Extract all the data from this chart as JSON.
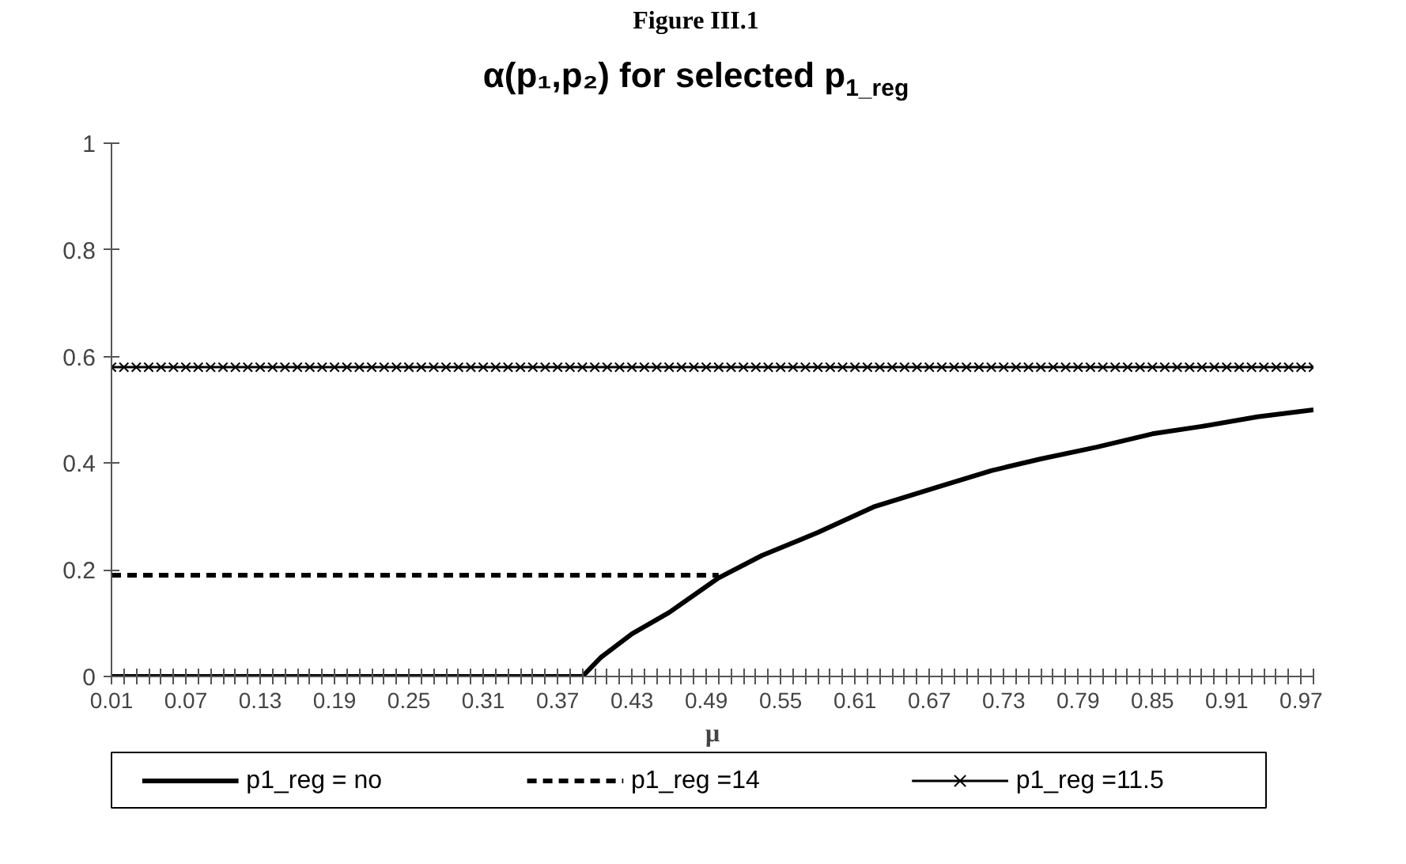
{
  "chart_data": {
    "type": "line",
    "title": "α(p₁,p₂) for selected p$_{1_reg}$",
    "annotations": [
      "Figure III.1"
    ],
    "xlabel": "μ",
    "x": [
      0.01,
      0.02,
      0.03,
      0.04,
      0.05,
      0.06,
      0.07,
      0.08,
      0.09,
      0.1,
      0.11,
      0.12,
      0.13,
      0.14,
      0.15,
      0.16,
      0.17,
      0.18,
      0.19,
      0.2,
      0.21,
      0.22,
      0.23,
      0.24,
      0.25,
      0.26,
      0.27,
      0.28,
      0.29,
      0.3,
      0.31,
      0.32,
      0.33,
      0.34,
      0.35,
      0.36,
      0.37,
      0.38,
      0.39,
      0.4,
      0.41,
      0.42,
      0.43,
      0.44,
      0.45,
      0.46,
      0.47,
      0.48,
      0.49,
      0.5,
      0.51,
      0.52,
      0.53,
      0.54,
      0.55,
      0.56,
      0.57,
      0.58,
      0.59,
      0.6,
      0.61,
      0.62,
      0.63,
      0.64,
      0.65,
      0.66,
      0.67,
      0.68,
      0.69,
      0.7,
      0.71,
      0.72,
      0.73,
      0.74,
      0.75,
      0.76,
      0.77,
      0.78,
      0.79,
      0.8,
      0.81,
      0.82,
      0.83,
      0.84,
      0.85,
      0.86,
      0.87,
      0.88,
      0.89,
      0.9,
      0.91,
      0.92,
      0.93,
      0.94,
      0.95,
      0.96,
      0.97,
      0.98
    ],
    "series": [
      {
        "name": "p1_reg = no",
        "color": "#000000",
        "line_style": "solid",
        "marker": "none",
        "x": [
          0.01,
          0.39,
          0.405,
          0.43,
          0.46,
          0.5,
          0.535,
          0.58,
          0.625,
          0.675,
          0.72,
          0.76,
          0.805,
          0.85,
          0.89,
          0.935,
          0.98
        ],
        "values": [
          0,
          0,
          0.036,
          0.08,
          0.12,
          0.185,
          0.227,
          0.27,
          0.318,
          0.354,
          0.386,
          0.408,
          0.43,
          0.455,
          0.469,
          0.487,
          0.5
        ]
      },
      {
        "name": "p1_reg =14",
        "color": "#000000",
        "line_style": "dashed",
        "marker": "none",
        "x": [
          0.01,
          0.5
        ],
        "values": [
          0.19,
          0.19
        ]
      },
      {
        "name": "p1_reg =11.5",
        "color": "#000000",
        "line_style": "solid",
        "marker": "cross",
        "values": [
          0.58,
          0.58,
          0.58,
          0.58,
          0.58,
          0.58,
          0.58,
          0.58,
          0.58,
          0.58,
          0.58,
          0.58,
          0.58,
          0.58,
          0.58,
          0.58,
          0.58,
          0.58,
          0.58,
          0.58,
          0.58,
          0.58,
          0.58,
          0.58,
          0.58,
          0.58,
          0.58,
          0.58,
          0.58,
          0.58,
          0.58,
          0.58,
          0.58,
          0.58,
          0.58,
          0.58,
          0.58,
          0.58,
          0.58,
          0.58,
          0.58,
          0.58,
          0.58,
          0.58,
          0.58,
          0.58,
          0.58,
          0.58,
          0.58,
          0.58,
          0.58,
          0.58,
          0.58,
          0.58,
          0.58,
          0.58,
          0.58,
          0.58,
          0.58,
          0.58,
          0.58,
          0.58,
          0.58,
          0.58,
          0.58,
          0.58,
          0.58,
          0.58,
          0.58,
          0.58,
          0.58,
          0.58,
          0.58,
          0.58,
          0.58,
          0.58,
          0.58,
          0.58,
          0.58,
          0.58,
          0.58,
          0.58,
          0.58,
          0.58,
          0.58,
          0.58,
          0.58,
          0.58,
          0.58,
          0.58,
          0.58,
          0.58,
          0.58,
          0.58,
          0.58,
          0.58,
          0.58,
          0.58
        ]
      }
    ],
    "xlim": [
      0.01,
      0.98
    ],
    "xticks": [
      0.01,
      {
        "value": 0.02,
        "label": null
      },
      {
        "value": 0.03,
        "label": null
      },
      {
        "value": 0.04,
        "label": null
      },
      {
        "value": 0.05,
        "label": null
      },
      {
        "value": 0.06,
        "label": null
      },
      0.07,
      {
        "value": 0.08,
        "label": null
      },
      {
        "value": 0.09,
        "label": null
      },
      {
        "value": 0.1,
        "label": null
      },
      {
        "value": 0.11,
        "label": null
      },
      {
        "value": 0.12,
        "label": null
      },
      0.13,
      {
        "value": 0.14,
        "label": null
      },
      {
        "value": 0.15,
        "label": null
      },
      {
        "value": 0.16,
        "label": null
      },
      {
        "value": 0.17,
        "label": null
      },
      {
        "value": 0.18,
        "label": null
      },
      0.19,
      {
        "value": 0.2,
        "label": null
      },
      {
        "value": 0.21,
        "label": null
      },
      {
        "value": 0.22,
        "label": null
      },
      {
        "value": 0.23,
        "label": null
      },
      {
        "value": 0.24,
        "label": null
      },
      0.25,
      {
        "value": 0.26,
        "label": null
      },
      {
        "value": 0.27,
        "label": null
      },
      {
        "value": 0.28,
        "label": null
      },
      {
        "value": 0.29,
        "label": null
      },
      {
        "value": 0.3,
        "label": null
      },
      0.31,
      {
        "value": 0.32,
        "label": null
      },
      {
        "value": 0.33,
        "label": null
      },
      {
        "value": 0.34,
        "label": null
      },
      {
        "value": 0.35,
        "label": null
      },
      {
        "value": 0.36,
        "label": null
      },
      0.37,
      {
        "value": 0.38,
        "label": null
      },
      {
        "value": 0.39,
        "label": null
      },
      {
        "value": 0.4,
        "label": null
      },
      {
        "value": 0.41,
        "label": null
      },
      {
        "value": 0.42,
        "label": null
      },
      0.43,
      {
        "value": 0.44,
        "label": null
      },
      {
        "value": 0.45,
        "label": null
      },
      {
        "value": 0.46,
        "label": null
      },
      {
        "value": 0.47,
        "label": null
      },
      {
        "value": 0.48,
        "label": null
      },
      0.49,
      {
        "value": 0.5,
        "label": null
      },
      {
        "value": 0.51,
        "label": null
      },
      {
        "value": 0.52,
        "label": null
      },
      {
        "value": 0.53,
        "label": null
      },
      {
        "value": 0.54,
        "label": null
      },
      0.55,
      {
        "value": 0.56,
        "label": null
      },
      {
        "value": 0.57,
        "label": null
      },
      {
        "value": 0.58,
        "label": null
      },
      {
        "value": 0.59,
        "label": null
      },
      {
        "value": 0.6,
        "label": null
      },
      0.61,
      {
        "value": 0.62,
        "label": null
      },
      {
        "value": 0.63,
        "label": null
      },
      {
        "value": 0.64,
        "label": null
      },
      {
        "value": 0.65,
        "label": null
      },
      {
        "value": 0.66,
        "label": null
      },
      0.67,
      {
        "value": 0.68,
        "label": null
      },
      {
        "value": 0.69,
        "label": null
      },
      {
        "value": 0.7,
        "label": null
      },
      {
        "value": 0.71,
        "label": null
      },
      {
        "value": 0.72,
        "label": null
      },
      0.73,
      {
        "value": 0.74,
        "label": null
      },
      {
        "value": 0.75,
        "label": null
      },
      {
        "value": 0.76,
        "label": null
      },
      {
        "value": 0.77,
        "label": null
      },
      {
        "value": 0.78,
        "label": null
      },
      0.79,
      {
        "value": 0.8,
        "label": null
      },
      {
        "value": 0.81,
        "label": null
      },
      {
        "value": 0.82,
        "label": null
      },
      {
        "value": 0.83,
        "label": null
      },
      {
        "value": 0.84,
        "label": null
      },
      0.85,
      {
        "value": 0.86,
        "label": null
      },
      {
        "value": 0.87,
        "label": null
      },
      {
        "value": 0.88,
        "label": null
      },
      {
        "value": 0.89,
        "label": null
      },
      {
        "value": 0.9,
        "label": null
      },
      0.91,
      {
        "value": 0.92,
        "label": null
      },
      {
        "value": 0.93,
        "label": null
      },
      {
        "value": 0.94,
        "label": null
      },
      {
        "value": 0.95,
        "label": null
      },
      {
        "value": 0.96,
        "label": null
      },
      0.97,
      {
        "value": 0.98,
        "label": null
      }
    ],
    "ylim": [
      0,
      1
    ],
    "yticks": [
      0,
      0.2,
      0.4,
      0.6,
      0.8,
      1
    ],
    "grid": false,
    "legend": "bottom"
  }
}
